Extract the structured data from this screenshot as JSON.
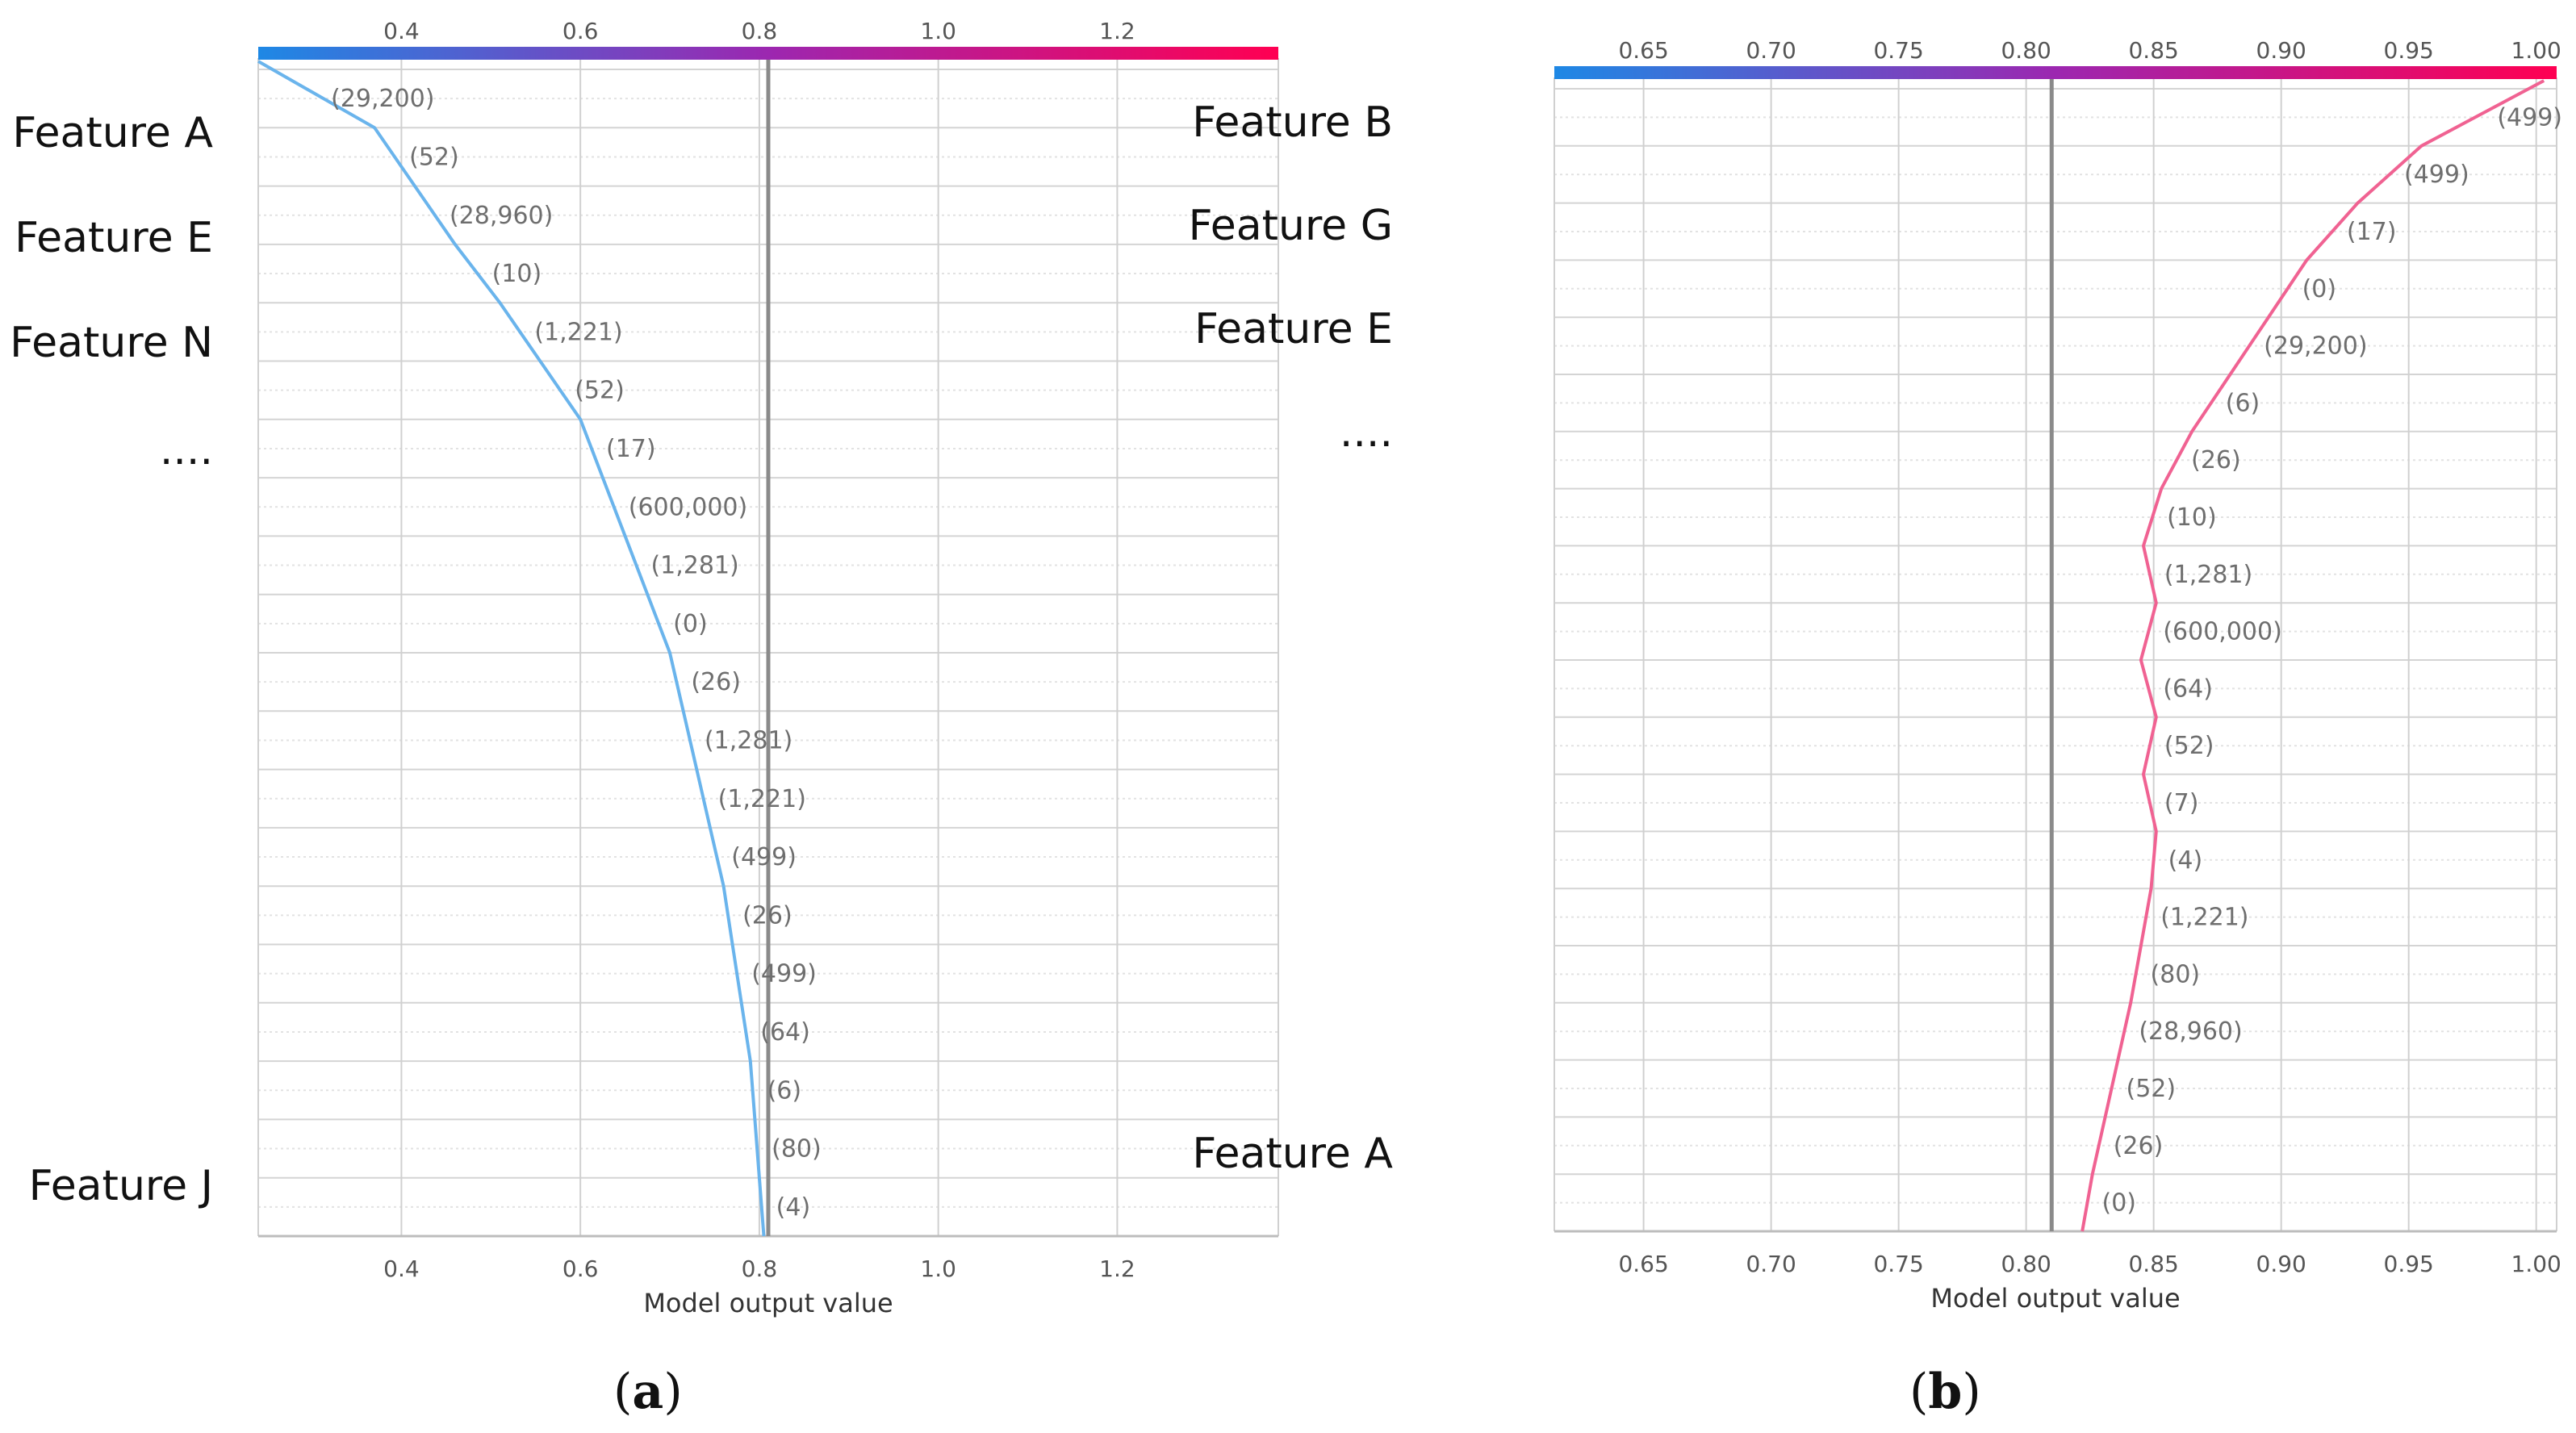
{
  "chart_data": [
    {
      "type": "line",
      "panel_label": "a",
      "xlabel": "Model output value",
      "xlim": [
        0.24,
        1.38
      ],
      "xticks": [
        "0.4",
        "0.6",
        "0.8",
        "1.0",
        "1.2"
      ],
      "base_value": 0.81,
      "feature_labels": [
        "Feature A",
        "Feature E",
        "Feature N",
        "....",
        "Feature J"
      ],
      "colorbar": {
        "start": "#1e88e5",
        "mid": "#9c27b0",
        "end": "#ff0052"
      },
      "line_color": "#6ab4ec",
      "rows": [
        {
          "label": "(29,200)",
          "x": 0.37
        },
        {
          "label": "(52)",
          "x": 0.415
        },
        {
          "label": "(28,960)",
          "x": 0.46
        },
        {
          "label": "(10)",
          "x": 0.51
        },
        {
          "label": "(1,221)",
          "x": 0.555
        },
        {
          "label": "(52)",
          "x": 0.6
        },
        {
          "label": "(17)",
          "x": 0.625
        },
        {
          "label": "(600,000)",
          "x": 0.65
        },
        {
          "label": "(1,281)",
          "x": 0.675
        },
        {
          "label": "(0)",
          "x": 0.7
        },
        {
          "label": "(26)",
          "x": 0.715
        },
        {
          "label": "(1,281)",
          "x": 0.73
        },
        {
          "label": "(1,221)",
          "x": 0.745
        },
        {
          "label": "(499)",
          "x": 0.76
        },
        {
          "label": "(26)",
          "x": 0.77
        },
        {
          "label": "(499)",
          "x": 0.78
        },
        {
          "label": "(64)",
          "x": 0.79
        },
        {
          "label": "(6)",
          "x": 0.795
        },
        {
          "label": "(80)",
          "x": 0.8
        },
        {
          "label": "(4)",
          "x": 0.805
        }
      ],
      "start_x": 0.24
    },
    {
      "type": "line",
      "panel_label": "b",
      "xlabel": "Model output value",
      "xlim": [
        0.615,
        1.008
      ],
      "xticks": [
        "0.65",
        "0.70",
        "0.75",
        "0.80",
        "0.85",
        "0.90",
        "0.95",
        "1.00"
      ],
      "base_value": 0.81,
      "feature_labels": [
        "Feature B",
        "Feature G",
        "Feature E",
        "....",
        "Feature A"
      ],
      "colorbar": {
        "start": "#1e88e5",
        "mid": "#9c27b0",
        "end": "#ff0052"
      },
      "line_color": "#f06292",
      "rows": [
        {
          "label": "(499)",
          "x": 0.955
        },
        {
          "label": "(499)",
          "x": 0.93
        },
        {
          "label": "(17)",
          "x": 0.91
        },
        {
          "label": "(0)",
          "x": 0.895
        },
        {
          "label": "(29,200)",
          "x": 0.88
        },
        {
          "label": "(6)",
          "x": 0.865
        },
        {
          "label": "(26)",
          "x": 0.853
        },
        {
          "label": "(10)",
          "x": 0.846
        },
        {
          "label": "(1,281)",
          "x": 0.851
        },
        {
          "label": "(600,000)",
          "x": 0.845
        },
        {
          "label": "(64)",
          "x": 0.851
        },
        {
          "label": "(52)",
          "x": 0.846
        },
        {
          "label": "(7)",
          "x": 0.851
        },
        {
          "label": "(4)",
          "x": 0.849
        },
        {
          "label": "(1,221)",
          "x": 0.845
        },
        {
          "label": "(80)",
          "x": 0.841
        },
        {
          "label": "(28,960)",
          "x": 0.836
        },
        {
          "label": "(52)",
          "x": 0.831
        },
        {
          "label": "(26)",
          "x": 0.826
        },
        {
          "label": "(0)",
          "x": 0.822
        }
      ],
      "start_x": 1.003
    }
  ]
}
